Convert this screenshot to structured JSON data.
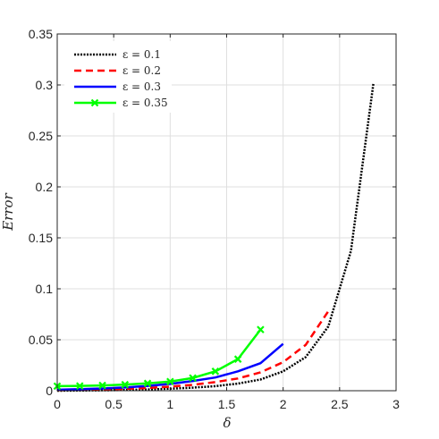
{
  "chart_data": {
    "type": "line",
    "title": "",
    "xlabel": "δ",
    "ylabel": "Error",
    "xlim": [
      0,
      3
    ],
    "ylim": [
      0,
      0.35
    ],
    "xticks": [
      "0",
      "0.5",
      "1",
      "1.5",
      "2",
      "2.5",
      "3"
    ],
    "yticks": [
      "0",
      "0.05",
      "0.1",
      "0.15",
      "0.2",
      "0.25",
      "0.3",
      "0.35"
    ],
    "grid": true,
    "legend_position": "top-left",
    "series": [
      {
        "name": "ε = 0.1",
        "color": "#000000",
        "style": "dotted",
        "marker": "none",
        "x": [
          0,
          0.2,
          0.4,
          0.6,
          0.8,
          1.0,
          1.2,
          1.4,
          1.6,
          1.8,
          2.0,
          2.2,
          2.4,
          2.6,
          2.8
        ],
        "y": [
          0.0,
          0.0002,
          0.0004,
          0.0007,
          0.0012,
          0.002,
          0.003,
          0.0045,
          0.007,
          0.011,
          0.019,
          0.033,
          0.063,
          0.137,
          0.302
        ]
      },
      {
        "name": "ε = 0.2",
        "color": "#ff0000",
        "style": "dashed",
        "marker": "none",
        "x": [
          0,
          0.2,
          0.4,
          0.6,
          0.8,
          1.0,
          1.2,
          1.4,
          1.6,
          1.8,
          2.0,
          2.2,
          2.4
        ],
        "y": [
          0.0005,
          0.0008,
          0.0012,
          0.0018,
          0.0027,
          0.004,
          0.0058,
          0.0085,
          0.012,
          0.018,
          0.028,
          0.045,
          0.078
        ]
      },
      {
        "name": "ε = 0.3",
        "color": "#0000ff",
        "style": "solid",
        "marker": "none",
        "x": [
          0,
          0.2,
          0.4,
          0.6,
          0.8,
          1.0,
          1.2,
          1.4,
          1.6,
          1.8,
          2.0
        ],
        "y": [
          0.001,
          0.0015,
          0.0022,
          0.0032,
          0.0047,
          0.0067,
          0.0095,
          0.013,
          0.019,
          0.027,
          0.046
        ]
      },
      {
        "name": "ε = 0.35",
        "color": "#00ff00",
        "style": "solid",
        "marker": "x",
        "x": [
          0,
          0.2,
          0.4,
          0.6,
          0.8,
          1.0,
          1.2,
          1.4,
          1.6,
          1.8
        ],
        "y": [
          0.0045,
          0.0047,
          0.0052,
          0.006,
          0.0072,
          0.009,
          0.0125,
          0.019,
          0.031,
          0.06
        ]
      }
    ]
  }
}
